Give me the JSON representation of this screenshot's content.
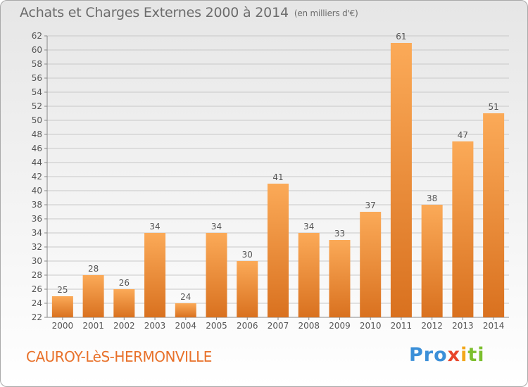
{
  "title": "Achats et Charges Externes 2000 à 2014",
  "unit": "(en milliers d'€)",
  "commune": "CAUROY-LèS-HERMONVILLE",
  "logo": {
    "p1": "Pro",
    "p2": "x",
    "p3": "i",
    "p4": "ti"
  },
  "colors": {
    "bar_light": "#fbaa58",
    "bar_dark": "#d9711f",
    "grid": "#c8c8c8",
    "text": "#555555"
  },
  "chart_data": {
    "type": "bar",
    "categories": [
      "2000",
      "2001",
      "2002",
      "2003",
      "2004",
      "2005",
      "2006",
      "2007",
      "2008",
      "2009",
      "2010",
      "2011",
      "2012",
      "2013",
      "2014"
    ],
    "values": [
      25,
      28,
      26,
      34,
      24,
      34,
      30,
      41,
      34,
      33,
      37,
      61,
      38,
      47,
      51
    ],
    "ylim": [
      22,
      62
    ],
    "yticks": [
      22,
      24,
      26,
      28,
      30,
      32,
      34,
      36,
      38,
      40,
      42,
      44,
      46,
      48,
      50,
      52,
      54,
      56,
      58,
      60,
      62
    ],
    "grid": true,
    "xlabel": "",
    "ylabel": ""
  }
}
